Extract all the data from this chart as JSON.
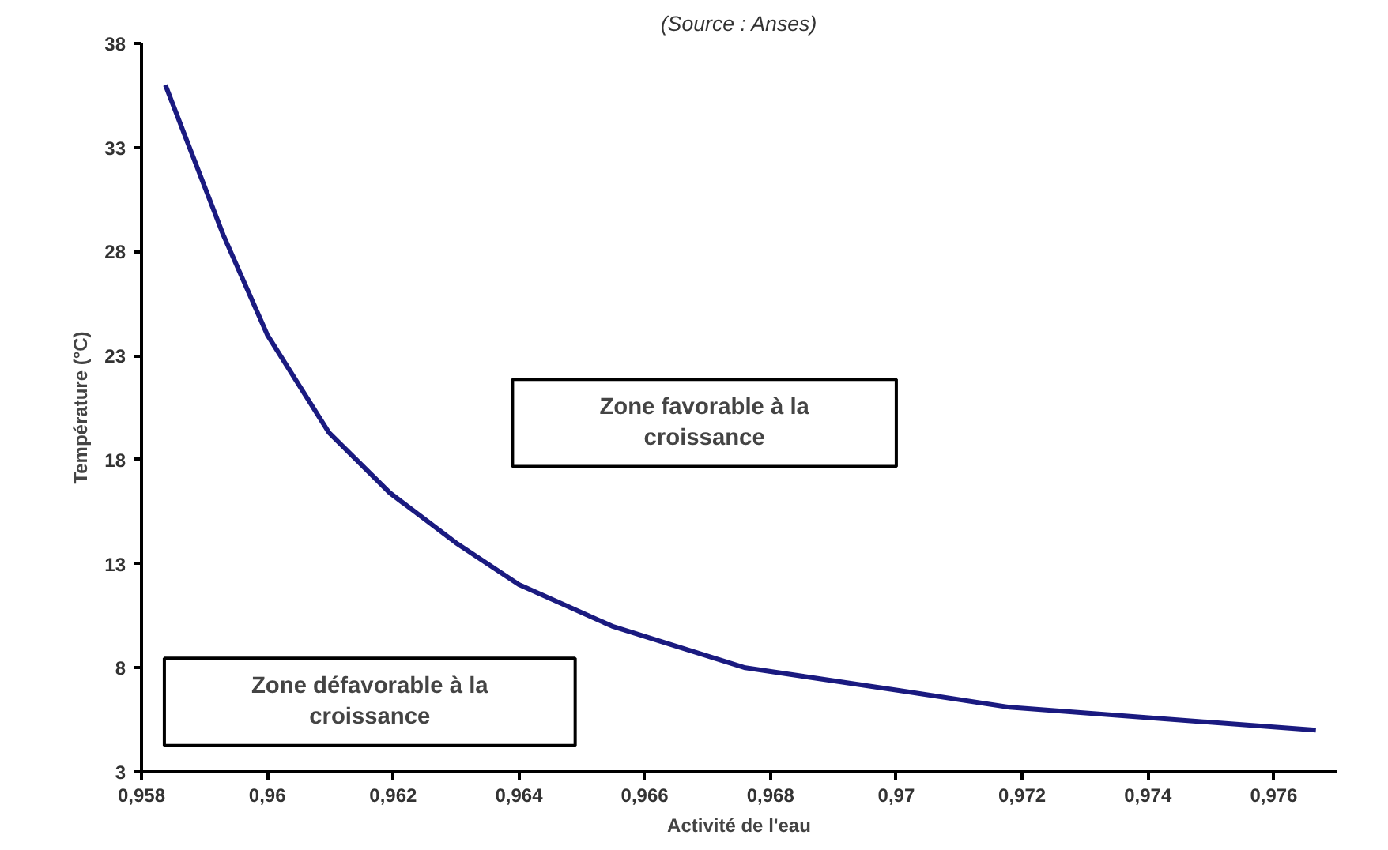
{
  "chart_data": {
    "type": "line",
    "xlabel": "Activité de l'eau",
    "ylabel": "Température (°C)",
    "x": [
      0.95838,
      0.9593,
      0.96,
      0.96098,
      0.96195,
      0.963,
      0.964,
      0.96548,
      0.9676,
      0.97006,
      0.9718,
      0.97667
    ],
    "series": [
      {
        "color": "#1a1a80",
        "values": [
          36.0,
          28.8,
          24.0,
          19.3,
          16.4,
          14.0,
          12.0,
          10.0,
          8.0,
          6.9,
          6.1,
          5.0
        ]
      }
    ],
    "xlim": [
      0.958,
      0.977
    ],
    "ylim": [
      3,
      38
    ],
    "xticks": [
      {
        "value": 0.958,
        "label": "0,958"
      },
      {
        "value": 0.96,
        "label": "0,96"
      },
      {
        "value": 0.962,
        "label": "0,962"
      },
      {
        "value": 0.964,
        "label": "0,964"
      },
      {
        "value": 0.966,
        "label": "0,966"
      },
      {
        "value": 0.968,
        "label": "0,968"
      },
      {
        "value": 0.97,
        "label": "0,97"
      },
      {
        "value": 0.972,
        "label": "0,972"
      },
      {
        "value": 0.974,
        "label": "0,974"
      },
      {
        "value": 0.976,
        "label": "0,976"
      }
    ],
    "yticks": [
      3,
      8,
      13,
      18,
      23,
      28,
      33,
      38
    ],
    "annotations": [
      "(Source : Anses)",
      "Zone favorable à la\ncroissance",
      "Zone défavorable à la\ncroissance"
    ],
    "grid": false,
    "marker": "none",
    "line_style": "solid"
  }
}
